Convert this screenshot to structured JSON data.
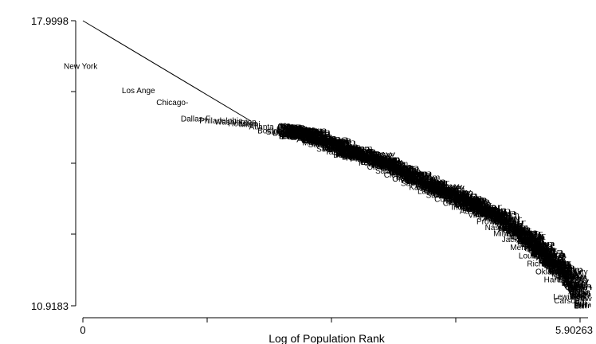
{
  "chart_data": {
    "type": "scatter",
    "title": "",
    "xlabel": "Log of Population Rank",
    "ylabel": "",
    "xlim": [
      0,
      5.90263
    ],
    "ylim": [
      10.9183,
      17.9998
    ],
    "x_tick_labels": [
      "0",
      "5.90263"
    ],
    "y_tick_labels": [
      "17.9998",
      "10.9183"
    ],
    "grid": false,
    "legend": "none",
    "reference_line": {
      "x": [
        0,
        2.0
      ],
      "y": [
        17.9998,
        15.5
      ]
    },
    "labeled_points": [
      {
        "label": "New York",
        "x": 0.0,
        "y": 16.8
      },
      {
        "label": "Los Ange",
        "x": 0.69,
        "y": 16.2
      },
      {
        "label": "Chicago-",
        "x": 1.1,
        "y": 15.9
      },
      {
        "label": "Dallas-F",
        "x": 1.39,
        "y": 15.5
      },
      {
        "label": "Philadelphia",
        "x": 1.61,
        "y": 15.45
      },
      {
        "label": "Washington",
        "x": 1.79,
        "y": 15.42
      },
      {
        "label": "Houston",
        "x": 1.95,
        "y": 15.38
      },
      {
        "label": "Miami",
        "x": 2.08,
        "y": 15.36
      },
      {
        "label": "Atlanta",
        "x": 2.2,
        "y": 15.3
      },
      {
        "label": "Boston-",
        "x": 2.3,
        "y": 15.2
      },
      {
        "label": "San Fran",
        "x": 2.4,
        "y": 15.17
      },
      {
        "label": "Detroit",
        "x": 2.48,
        "y": 15.14
      },
      {
        "label": "Riverside",
        "x": 2.56,
        "y": 15.1
      },
      {
        "label": "Phoenix",
        "x": 2.64,
        "y": 15.08
      },
      {
        "label": "Seattle",
        "x": 2.7,
        "y": 15.05
      },
      {
        "label": "Minneapolis",
        "x": 2.83,
        "y": 14.9
      },
      {
        "label": "San Diego",
        "x": 2.9,
        "y": 14.85
      },
      {
        "label": "St. Louis",
        "x": 3.0,
        "y": 14.75
      },
      {
        "label": "Tampa",
        "x": 3.1,
        "y": 14.68
      },
      {
        "label": "Baltimore",
        "x": 3.2,
        "y": 14.6
      },
      {
        "label": "Denver",
        "x": 3.3,
        "y": 14.55
      },
      {
        "label": "Pittsburgh",
        "x": 3.4,
        "y": 14.5
      },
      {
        "label": "Portland",
        "x": 3.5,
        "y": 14.4
      },
      {
        "label": "Cincinnati",
        "x": 3.6,
        "y": 14.3
      },
      {
        "label": "Sacramento",
        "x": 3.7,
        "y": 14.2
      },
      {
        "label": "Cleveland",
        "x": 3.8,
        "y": 14.1
      },
      {
        "label": "Orlando",
        "x": 3.9,
        "y": 14.0
      },
      {
        "label": "San Antonio",
        "x": 4.0,
        "y": 13.9
      },
      {
        "label": "Kansas City",
        "x": 4.1,
        "y": 13.8
      },
      {
        "label": "Las Vegas",
        "x": 4.2,
        "y": 13.7
      },
      {
        "label": "San Jose",
        "x": 4.3,
        "y": 13.6
      },
      {
        "label": "Columbus",
        "x": 4.4,
        "y": 13.5
      },
      {
        "label": "Charlotte",
        "x": 4.5,
        "y": 13.4
      },
      {
        "label": "Indianapolis",
        "x": 4.6,
        "y": 13.3
      },
      {
        "label": "Austin",
        "x": 4.7,
        "y": 13.2
      },
      {
        "label": "Virginia Beach",
        "x": 4.8,
        "y": 13.1
      },
      {
        "label": "Providence",
        "x": 4.9,
        "y": 12.95
      },
      {
        "label": "Nashville",
        "x": 5.0,
        "y": 12.8
      },
      {
        "label": "Milwaukee",
        "x": 5.1,
        "y": 12.65
      },
      {
        "label": "Jacksonville",
        "x": 5.2,
        "y": 12.5
      },
      {
        "label": "Memphis",
        "x": 5.3,
        "y": 12.3
      },
      {
        "label": "Louisville",
        "x": 5.4,
        "y": 12.1
      },
      {
        "label": "Richmond",
        "x": 5.5,
        "y": 11.9
      },
      {
        "label": "Oklahoma City",
        "x": 5.6,
        "y": 11.7
      },
      {
        "label": "Hartford",
        "x": 5.7,
        "y": 11.5
      },
      {
        "label": "Lewiston",
        "x": 5.81,
        "y": 11.08
      },
      {
        "label": "Carson C",
        "x": 5.82,
        "y": 10.98
      }
    ]
  }
}
